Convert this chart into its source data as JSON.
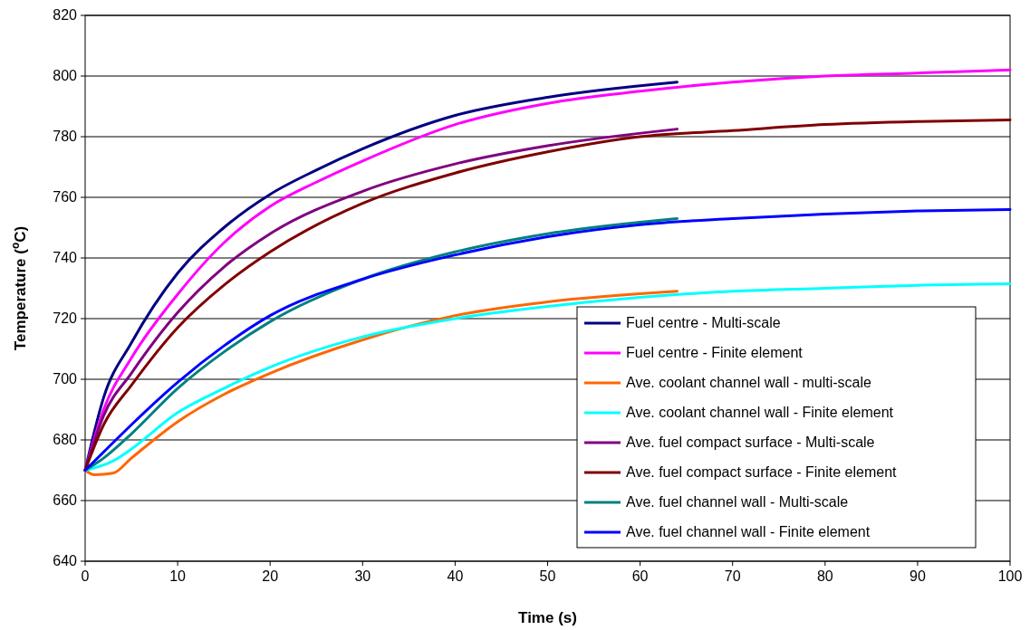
{
  "chart_data": {
    "type": "line",
    "xlabel": "Time (s)",
    "ylabel": "Temperature ($^{o}$C)",
    "xlim": [
      0,
      100
    ],
    "xticks": [
      0,
      10,
      20,
      30,
      40,
      50,
      60,
      70,
      80,
      90,
      100
    ],
    "ylim": [
      640,
      820
    ],
    "yticks": [
      640,
      660,
      680,
      700,
      720,
      740,
      760,
      780,
      800,
      820
    ],
    "grid": "y",
    "legend": "bottom right",
    "marker": "none",
    "line_style": "solid",
    "series": [
      {
        "name": "Fuel centre - Multi-scale",
        "color": "#000080",
        "x": [
          0,
          2,
          5,
          10,
          15,
          20,
          25,
          30,
          40,
          50,
          64
        ],
        "values": [
          670,
          694,
          712,
          735,
          750,
          761,
          769,
          776,
          787,
          793,
          798
        ]
      },
      {
        "name": "Fuel centre - Finite element",
        "color": "#ff00ff",
        "x": [
          0,
          2,
          5,
          10,
          15,
          20,
          25,
          30,
          40,
          50,
          60,
          70,
          80,
          90,
          100
        ],
        "values": [
          670,
          690,
          707,
          728,
          745,
          757,
          765,
          772,
          784,
          791,
          795,
          798,
          800,
          801,
          802
        ]
      },
      {
        "name": "Ave. coolant channel wall - multi-scale",
        "color": "#ff6600",
        "x": [
          0,
          1,
          3,
          5,
          10,
          15,
          20,
          30,
          40,
          50,
          64
        ],
        "values": [
          670,
          668.5,
          669,
          674,
          686,
          695,
          702,
          713,
          721,
          725.5,
          729
        ]
      },
      {
        "name": "Ave. coolant channel wall - Finite element",
        "color": "#00ffff",
        "x": [
          0,
          3,
          5,
          10,
          15,
          20,
          30,
          40,
          50,
          60,
          70,
          80,
          90,
          100
        ],
        "values": [
          670,
          673,
          677,
          689,
          697,
          704,
          714,
          720,
          724,
          727,
          729,
          730,
          731,
          731.5
        ]
      },
      {
        "name": "Ave. fuel compact surface - Multi-scale",
        "color": "#800080",
        "x": [
          0,
          2,
          5,
          10,
          15,
          20,
          30,
          40,
          50,
          64
        ],
        "values": [
          670,
          688,
          702,
          722,
          737,
          748,
          762,
          771,
          777,
          782.5
        ]
      },
      {
        "name": "Ave. fuel compact surface - Finite element",
        "color": "#800000",
        "x": [
          0,
          2,
          5,
          10,
          15,
          20,
          30,
          40,
          50,
          60,
          70,
          80,
          90,
          100
        ],
        "values": [
          670,
          685,
          698,
          717,
          731,
          742,
          758,
          768,
          775,
          780,
          782,
          784,
          785,
          785.5
        ]
      },
      {
        "name": "Ave. fuel channel wall - Multi-scale",
        "color": "#008080",
        "x": [
          0,
          2,
          5,
          10,
          15,
          20,
          30,
          40,
          50,
          64
        ],
        "values": [
          670,
          674,
          682,
          697,
          709,
          719,
          733,
          742,
          748,
          753
        ]
      },
      {
        "name": "Ave. fuel channel wall - Finite element",
        "color": "#0000ff",
        "x": [
          0,
          2,
          5,
          10,
          15,
          20,
          30,
          40,
          50,
          60,
          70,
          80,
          90,
          100
        ],
        "values": [
          670,
          676,
          685,
          699,
          711,
          721,
          733,
          741,
          747,
          751,
          753,
          754.5,
          755.5,
          756
        ]
      }
    ]
  }
}
